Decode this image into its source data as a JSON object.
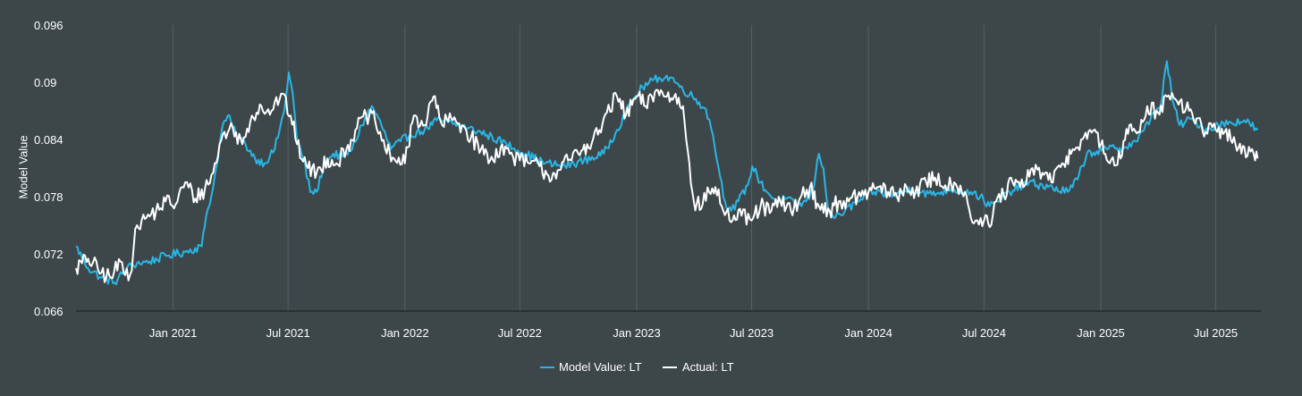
{
  "chart_data": {
    "type": "line",
    "title": "",
    "xlabel": "",
    "ylabel": "Model Value",
    "ylim": [
      0.066,
      0.096
    ],
    "yticks": [
      0.066,
      0.072,
      0.078,
      0.084,
      0.09,
      0.096
    ],
    "ytick_labels": [
      "0.066",
      "0.072",
      "0.078",
      "0.084",
      "0.09",
      "0.096"
    ],
    "xlim": [
      "2020-08-01",
      "2025-09-10"
    ],
    "xticks": [
      "2021-01-01",
      "2021-07-01",
      "2022-01-01",
      "2022-07-01",
      "2023-01-01",
      "2023-07-01",
      "2024-01-01",
      "2024-07-01",
      "2025-01-01",
      "2025-07-01"
    ],
    "xtick_labels": [
      "Jan 2021",
      "Jul 2021",
      "Jan 2022",
      "Jul 2022",
      "Jan 2023",
      "Jul 2023",
      "Jan 2024",
      "Jul 2024",
      "Jan 2025",
      "Jul 2025"
    ],
    "grid": "vertical",
    "legend_position": "bottom-center",
    "series": [
      {
        "name": "Model Value: LT",
        "color": "#29b6e6",
        "points": [
          [
            "2020-08-01",
            0.0728
          ],
          [
            "2020-08-20",
            0.0705
          ],
          [
            "2020-09-10",
            0.0695
          ],
          [
            "2020-10-01",
            0.069
          ],
          [
            "2020-10-20",
            0.0705
          ],
          [
            "2020-11-05",
            0.071
          ],
          [
            "2020-11-25",
            0.0712
          ],
          [
            "2020-12-20",
            0.0718
          ],
          [
            "2021-01-20",
            0.0722
          ],
          [
            "2021-02-15",
            0.0728
          ],
          [
            "2021-02-22",
            0.076
          ],
          [
            "2021-03-05",
            0.079
          ],
          [
            "2021-03-20",
            0.0855
          ],
          [
            "2021-03-28",
            0.0865
          ],
          [
            "2021-04-10",
            0.0845
          ],
          [
            "2021-04-25",
            0.0835
          ],
          [
            "2021-05-10",
            0.082
          ],
          [
            "2021-05-25",
            0.0815
          ],
          [
            "2021-06-10",
            0.083
          ],
          [
            "2021-06-25",
            0.087
          ],
          [
            "2021-07-02",
            0.091
          ],
          [
            "2021-07-08",
            0.089
          ],
          [
            "2021-07-15",
            0.084
          ],
          [
            "2021-07-25",
            0.082
          ],
          [
            "2021-08-05",
            0.0785
          ],
          [
            "2021-08-15",
            0.0785
          ],
          [
            "2021-08-25",
            0.081
          ],
          [
            "2021-09-10",
            0.0825
          ],
          [
            "2021-09-25",
            0.0822
          ],
          [
            "2021-10-10",
            0.083
          ],
          [
            "2021-10-25",
            0.0855
          ],
          [
            "2021-11-10",
            0.0875
          ],
          [
            "2021-11-25",
            0.0855
          ],
          [
            "2021-12-10",
            0.083
          ],
          [
            "2021-12-25",
            0.0838
          ],
          [
            "2022-01-10",
            0.0845
          ],
          [
            "2022-02-01",
            0.085
          ],
          [
            "2022-02-20",
            0.086
          ],
          [
            "2022-03-10",
            0.0858
          ],
          [
            "2022-04-10",
            0.0852
          ],
          [
            "2022-05-10",
            0.0845
          ],
          [
            "2022-06-10",
            0.0835
          ],
          [
            "2022-07-10",
            0.0825
          ],
          [
            "2022-08-10",
            0.0815
          ],
          [
            "2022-09-10",
            0.0812
          ],
          [
            "2022-10-10",
            0.0818
          ],
          [
            "2022-11-10",
            0.0825
          ],
          [
            "2022-12-01",
            0.085
          ],
          [
            "2022-12-20",
            0.0875
          ],
          [
            "2023-01-10",
            0.0895
          ],
          [
            "2023-02-05",
            0.0905
          ],
          [
            "2023-02-25",
            0.0905
          ],
          [
            "2023-03-10",
            0.0895
          ],
          [
            "2023-03-30",
            0.0885
          ],
          [
            "2023-04-20",
            0.0872
          ],
          [
            "2023-05-01",
            0.0845
          ],
          [
            "2023-05-10",
            0.081
          ],
          [
            "2023-05-20",
            0.0775
          ],
          [
            "2023-05-30",
            0.0765
          ],
          [
            "2023-06-10",
            0.0775
          ],
          [
            "2023-06-25",
            0.0792
          ],
          [
            "2023-07-02",
            0.0812
          ],
          [
            "2023-07-15",
            0.0795
          ],
          [
            "2023-07-25",
            0.0785
          ],
          [
            "2023-08-10",
            0.0775
          ],
          [
            "2023-08-25",
            0.0778
          ],
          [
            "2023-09-10",
            0.077
          ],
          [
            "2023-09-25",
            0.0775
          ],
          [
            "2023-10-05",
            0.0785
          ],
          [
            "2023-10-15",
            0.0825
          ],
          [
            "2023-10-22",
            0.081
          ],
          [
            "2023-10-30",
            0.0765
          ],
          [
            "2023-11-10",
            0.0758
          ],
          [
            "2023-11-25",
            0.0765
          ],
          [
            "2023-12-15",
            0.0775
          ],
          [
            "2024-01-10",
            0.0785
          ],
          [
            "2024-02-10",
            0.0782
          ],
          [
            "2024-03-10",
            0.0788
          ],
          [
            "2024-04-10",
            0.0782
          ],
          [
            "2024-05-10",
            0.0788
          ],
          [
            "2024-06-10",
            0.0785
          ],
          [
            "2024-06-25",
            0.078
          ],
          [
            "2024-07-10",
            0.077
          ],
          [
            "2024-07-25",
            0.0775
          ],
          [
            "2024-08-10",
            0.0785
          ],
          [
            "2024-09-10",
            0.0795
          ],
          [
            "2024-10-10",
            0.079
          ],
          [
            "2024-11-10",
            0.0785
          ],
          [
            "2024-11-25",
            0.0798
          ],
          [
            "2024-12-10",
            0.0825
          ],
          [
            "2025-01-10",
            0.083
          ],
          [
            "2025-02-10",
            0.0832
          ],
          [
            "2025-02-25",
            0.0838
          ],
          [
            "2025-03-10",
            0.085
          ],
          [
            "2025-03-25",
            0.0868
          ],
          [
            "2025-04-05",
            0.0875
          ],
          [
            "2025-04-15",
            0.0922
          ],
          [
            "2025-04-25",
            0.0878
          ],
          [
            "2025-05-05",
            0.0855
          ],
          [
            "2025-05-25",
            0.0862
          ],
          [
            "2025-06-15",
            0.085
          ],
          [
            "2025-07-05",
            0.0855
          ],
          [
            "2025-07-25",
            0.0858
          ],
          [
            "2025-08-15",
            0.086
          ],
          [
            "2025-09-05",
            0.085
          ]
        ]
      },
      {
        "name": "Actual: LT",
        "color": "#ffffff",
        "points": [
          [
            "2020-08-01",
            0.0705
          ],
          [
            "2020-08-20",
            0.0715
          ],
          [
            "2020-09-10",
            0.07
          ],
          [
            "2020-09-25",
            0.0695
          ],
          [
            "2020-10-10",
            0.0712
          ],
          [
            "2020-10-25",
            0.0698
          ],
          [
            "2020-11-05",
            0.075
          ],
          [
            "2020-11-20",
            0.0758
          ],
          [
            "2020-12-05",
            0.0765
          ],
          [
            "2020-12-20",
            0.0775
          ],
          [
            "2021-01-05",
            0.0772
          ],
          [
            "2021-01-20",
            0.0795
          ],
          [
            "2021-02-05",
            0.0778
          ],
          [
            "2021-02-20",
            0.0788
          ],
          [
            "2021-03-05",
            0.0805
          ],
          [
            "2021-03-20",
            0.0845
          ],
          [
            "2021-04-05",
            0.0852
          ],
          [
            "2021-04-20",
            0.0835
          ],
          [
            "2021-05-05",
            0.0865
          ],
          [
            "2021-05-20",
            0.0875
          ],
          [
            "2021-06-05",
            0.087
          ],
          [
            "2021-06-20",
            0.0888
          ],
          [
            "2021-07-05",
            0.0865
          ],
          [
            "2021-07-15",
            0.0835
          ],
          [
            "2021-08-01",
            0.081
          ],
          [
            "2021-08-15",
            0.0805
          ],
          [
            "2021-09-01",
            0.082
          ],
          [
            "2021-09-15",
            0.0815
          ],
          [
            "2021-10-01",
            0.083
          ],
          [
            "2021-10-15",
            0.085
          ],
          [
            "2021-11-01",
            0.0865
          ],
          [
            "2021-11-15",
            0.086
          ],
          [
            "2021-12-01",
            0.083
          ],
          [
            "2021-12-15",
            0.082
          ],
          [
            "2022-01-01",
            0.0815
          ],
          [
            "2022-01-15",
            0.0865
          ],
          [
            "2022-02-01",
            0.0855
          ],
          [
            "2022-02-15",
            0.0885
          ],
          [
            "2022-03-01",
            0.0855
          ],
          [
            "2022-03-15",
            0.0862
          ],
          [
            "2022-04-01",
            0.0855
          ],
          [
            "2022-04-15",
            0.0842
          ],
          [
            "2022-05-01",
            0.083
          ],
          [
            "2022-05-15",
            0.0818
          ],
          [
            "2022-06-01",
            0.0832
          ],
          [
            "2022-06-15",
            0.0825
          ],
          [
            "2022-07-01",
            0.0818
          ],
          [
            "2022-07-15",
            0.0815
          ],
          [
            "2022-08-01",
            0.0812
          ],
          [
            "2022-08-15",
            0.0802
          ],
          [
            "2022-09-01",
            0.0808
          ],
          [
            "2022-09-15",
            0.0818
          ],
          [
            "2022-10-01",
            0.0825
          ],
          [
            "2022-10-15",
            0.0835
          ],
          [
            "2022-11-01",
            0.0845
          ],
          [
            "2022-11-15",
            0.0868
          ],
          [
            "2022-12-01",
            0.0885
          ],
          [
            "2022-12-15",
            0.0865
          ],
          [
            "2023-01-01",
            0.0885
          ],
          [
            "2023-01-15",
            0.0875
          ],
          [
            "2023-02-01",
            0.0892
          ],
          [
            "2023-02-15",
            0.0885
          ],
          [
            "2023-03-01",
            0.0885
          ],
          [
            "2023-03-15",
            0.0875
          ],
          [
            "2023-03-25",
            0.0815
          ],
          [
            "2023-04-01",
            0.0775
          ],
          [
            "2023-04-15",
            0.0772
          ],
          [
            "2023-04-25",
            0.0785
          ],
          [
            "2023-05-05",
            0.079
          ],
          [
            "2023-05-15",
            0.077
          ],
          [
            "2023-06-01",
            0.0755
          ],
          [
            "2023-06-15",
            0.076
          ],
          [
            "2023-07-01",
            0.0755
          ],
          [
            "2023-07-15",
            0.077
          ],
          [
            "2023-08-01",
            0.0765
          ],
          [
            "2023-08-15",
            0.0775
          ],
          [
            "2023-09-01",
            0.0765
          ],
          [
            "2023-09-15",
            0.0778
          ],
          [
            "2023-10-01",
            0.079
          ],
          [
            "2023-10-15",
            0.077
          ],
          [
            "2023-11-01",
            0.0765
          ],
          [
            "2023-11-15",
            0.0775
          ],
          [
            "2023-12-01",
            0.0775
          ],
          [
            "2023-12-15",
            0.078
          ],
          [
            "2024-01-01",
            0.0785
          ],
          [
            "2024-01-15",
            0.079
          ],
          [
            "2024-02-01",
            0.0785
          ],
          [
            "2024-02-15",
            0.078
          ],
          [
            "2024-03-01",
            0.079
          ],
          [
            "2024-03-15",
            0.0785
          ],
          [
            "2024-04-01",
            0.0795
          ],
          [
            "2024-04-15",
            0.08
          ],
          [
            "2024-05-01",
            0.0792
          ],
          [
            "2024-05-15",
            0.0795
          ],
          [
            "2024-06-01",
            0.0785
          ],
          [
            "2024-06-15",
            0.0752
          ],
          [
            "2024-07-01",
            0.0755
          ],
          [
            "2024-07-10",
            0.0748
          ],
          [
            "2024-07-20",
            0.0775
          ],
          [
            "2024-08-01",
            0.0782
          ],
          [
            "2024-08-15",
            0.0795
          ],
          [
            "2024-09-01",
            0.079
          ],
          [
            "2024-09-15",
            0.081
          ],
          [
            "2024-10-01",
            0.0805
          ],
          [
            "2024-10-15",
            0.0795
          ],
          [
            "2024-11-01",
            0.0815
          ],
          [
            "2024-11-15",
            0.0825
          ],
          [
            "2024-12-01",
            0.084
          ],
          [
            "2024-12-15",
            0.085
          ],
          [
            "2025-01-01",
            0.0835
          ],
          [
            "2025-01-15",
            0.0815
          ],
          [
            "2025-02-01",
            0.082
          ],
          [
            "2025-02-15",
            0.0855
          ],
          [
            "2025-03-01",
            0.0848
          ],
          [
            "2025-03-15",
            0.0875
          ],
          [
            "2025-04-01",
            0.0868
          ],
          [
            "2025-04-15",
            0.0885
          ],
          [
            "2025-05-01",
            0.088
          ],
          [
            "2025-05-15",
            0.0872
          ],
          [
            "2025-06-01",
            0.0862
          ],
          [
            "2025-06-15",
            0.0848
          ],
          [
            "2025-07-01",
            0.085
          ],
          [
            "2025-07-15",
            0.0848
          ],
          [
            "2025-08-01",
            0.0835
          ],
          [
            "2025-08-15",
            0.0832
          ],
          [
            "2025-09-01",
            0.0818
          ],
          [
            "2025-09-05",
            0.082
          ]
        ]
      }
    ]
  }
}
